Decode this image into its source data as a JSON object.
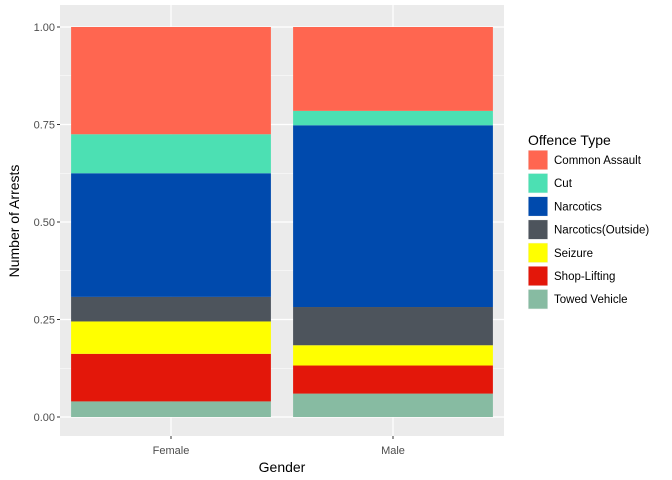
{
  "chart_data": {
    "type": "bar",
    "stacked": true,
    "categories": [
      "Female",
      "Male"
    ],
    "xlabel": "Gender",
    "ylabel": "Number of Arrests",
    "ylim": [
      0,
      1
    ],
    "yticks": [
      "0.00",
      "0.25",
      "0.50",
      "0.75",
      "1.00"
    ],
    "grid": true,
    "legend": {
      "title": "Offence Type",
      "position": "right"
    },
    "series": [
      {
        "name": "Common Assault",
        "color": "#FF6650",
        "values": [
          0.275,
          0.215
        ]
      },
      {
        "name": "Cut",
        "color": "#4CE0B3",
        "values": [
          0.1,
          0.037
        ]
      },
      {
        "name": "Narcotics",
        "color": "#004AAD",
        "values": [
          0.317,
          0.466
        ]
      },
      {
        "name": "Narcotics(Outside)",
        "color": "#4D545C",
        "values": [
          0.063,
          0.098
        ]
      },
      {
        "name": "Seizure",
        "color": "#FFFF00",
        "values": [
          0.083,
          0.052
        ]
      },
      {
        "name": "Shop-Lifting",
        "color": "#E3170A",
        "values": [
          0.122,
          0.072
        ]
      },
      {
        "name": "Towed Vehicle",
        "color": "#87BBA2",
        "values": [
          0.04,
          0.06
        ]
      }
    ]
  }
}
